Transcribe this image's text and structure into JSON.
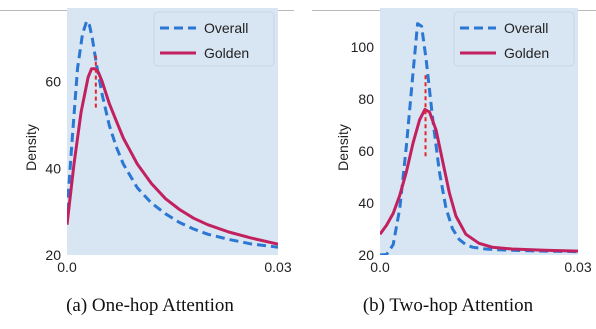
{
  "colors": {
    "background": "#d8e5f2",
    "overall": "#2a77d4",
    "golden": "#c2215f",
    "peak_marker": "#e3262a"
  },
  "captions": [
    "(a)  One-hop Attention",
    "(b)  Two-hop Attention"
  ],
  "chart_data": [
    {
      "type": "line",
      "title": "",
      "xlabel": "",
      "ylabel": "Density",
      "xlim": [
        0.0,
        0.03
      ],
      "ylim": [
        20,
        77
      ],
      "x_ticks": [
        0.0,
        0.03
      ],
      "x_tick_labels": [
        "0.0",
        "0.03"
      ],
      "y_ticks": [
        20,
        40,
        60
      ],
      "y_tick_labels": [
        "20",
        "40",
        "60"
      ],
      "grid": false,
      "legend": {
        "position": "top-right",
        "entries": [
          "Overall",
          "Golden"
        ]
      },
      "series": [
        {
          "name": "Overall",
          "style": "dashed",
          "x": [
            0,
            0.0008,
            0.0015,
            0.0022,
            0.0028,
            0.0032,
            0.0036,
            0.0042,
            0.005,
            0.006,
            0.007,
            0.008,
            0.01,
            0.012,
            0.014,
            0.016,
            0.018,
            0.02,
            0.023,
            0.026,
            0.03
          ],
          "y": [
            30,
            48,
            63,
            71,
            74,
            73,
            70,
            64,
            57,
            50,
            45,
            41,
            35.5,
            32,
            29.5,
            27.5,
            26,
            24.8,
            23.6,
            22.6,
            21.8
          ]
        },
        {
          "name": "Golden",
          "style": "solid",
          "x": [
            0,
            0.001,
            0.002,
            0.003,
            0.0035,
            0.004,
            0.0045,
            0.005,
            0.006,
            0.007,
            0.008,
            0.01,
            0.012,
            0.014,
            0.016,
            0.018,
            0.02,
            0.023,
            0.026,
            0.03
          ],
          "y": [
            27,
            41,
            53,
            61,
            63,
            63,
            62,
            60,
            55,
            51,
            47,
            41,
            36.5,
            33,
            30.5,
            28.5,
            27,
            25.3,
            24,
            22.5
          ]
        }
      ],
      "peak_marker": {
        "x": 0.0041,
        "y0": 54,
        "y1": 66
      }
    },
    {
      "type": "line",
      "title": "",
      "xlabel": "",
      "ylabel": "Density",
      "xlim": [
        0.0,
        0.03
      ],
      "ylim": [
        20,
        115
      ],
      "x_ticks": [
        0.0,
        0.03
      ],
      "x_tick_labels": [
        "0.0",
        "0.03"
      ],
      "y_ticks": [
        20,
        40,
        60,
        80,
        100
      ],
      "y_tick_labels": [
        "20",
        "40",
        "60",
        "80",
        "100"
      ],
      "grid": false,
      "legend": {
        "position": "top-right",
        "entries": [
          "Overall",
          "Golden"
        ]
      },
      "series": [
        {
          "name": "Overall",
          "style": "dashed",
          "x": [
            0,
            0.001,
            0.002,
            0.003,
            0.004,
            0.005,
            0.0057,
            0.0063,
            0.007,
            0.008,
            0.009,
            0.01,
            0.011,
            0.012,
            0.013,
            0.014,
            0.016,
            0.018,
            0.02,
            0.025,
            0.03
          ],
          "y": [
            20,
            20.2,
            24,
            38,
            62,
            90,
            109,
            108,
            95,
            72,
            52,
            38,
            30,
            26,
            24,
            23,
            22.3,
            22,
            21.8,
            21.5,
            21.3
          ]
        },
        {
          "name": "Golden",
          "style": "solid",
          "x": [
            0,
            0.001,
            0.002,
            0.003,
            0.004,
            0.005,
            0.006,
            0.0068,
            0.0075,
            0.0085,
            0.0095,
            0.0105,
            0.0115,
            0.013,
            0.015,
            0.017,
            0.02,
            0.025,
            0.03
          ],
          "y": [
            28,
            31.5,
            36,
            43,
            52,
            63,
            72,
            76,
            75,
            68,
            56,
            44,
            35,
            28,
            24.5,
            23,
            22.3,
            21.8,
            21.5
          ]
        }
      ],
      "peak_marker": {
        "x": 0.0069,
        "y0": 58,
        "y1": 90
      }
    }
  ]
}
